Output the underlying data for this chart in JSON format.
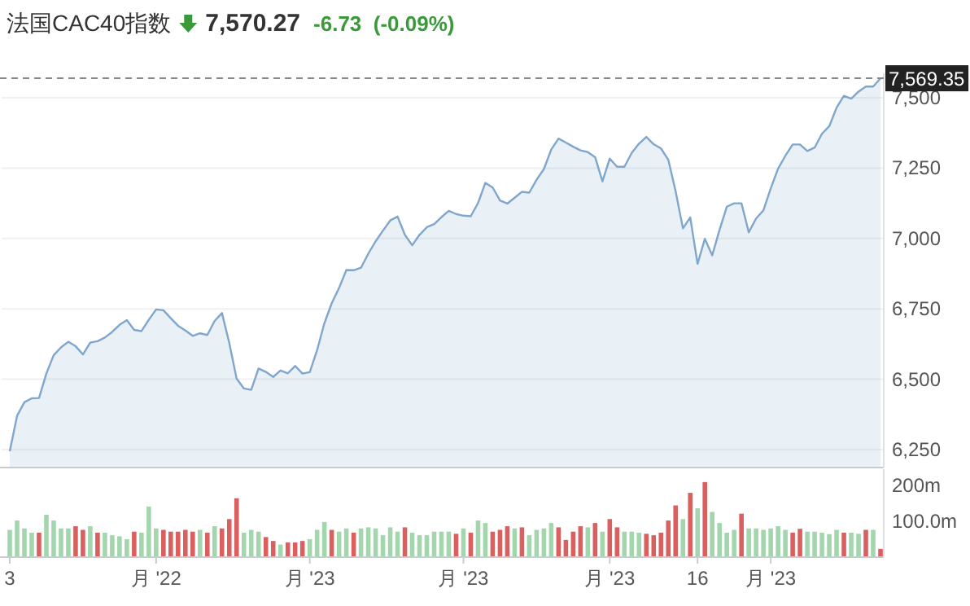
{
  "chart_data": [
    {
      "type": "area",
      "title": "法国CAC40指数",
      "annotations": [
        "7,570.27",
        "-6.73  (-0.09%)"
      ],
      "categories": [
        null,
        null,
        null,
        null,
        null,
        null,
        null,
        null,
        null,
        null,
        null,
        null,
        null,
        null,
        null,
        null,
        null,
        null,
        null,
        null,
        null,
        null,
        null,
        null,
        null,
        null,
        null,
        null,
        null,
        null,
        null,
        null,
        null,
        null,
        null,
        null,
        null,
        null,
        null,
        null,
        null,
        null,
        null,
        null,
        null,
        null,
        null,
        null,
        null,
        null,
        null,
        null,
        null,
        null,
        null,
        null,
        null,
        null,
        null,
        null,
        null,
        null,
        null,
        null,
        null,
        null,
        null,
        null,
        null,
        null,
        null,
        null,
        null,
        null,
        null,
        null,
        null,
        null,
        null,
        null,
        null,
        null,
        null,
        null,
        null,
        null,
        null,
        null,
        null,
        null,
        null,
        null,
        null,
        null,
        null,
        null,
        null,
        null,
        null,
        null,
        null,
        null,
        null,
        null,
        null,
        null,
        null,
        null,
        null,
        null,
        null,
        null,
        null,
        null,
        null,
        null,
        null,
        null,
        null,
        null
      ],
      "series": [
        {
          "color": "#7fa6cc",
          "values": [
            6244,
            6370,
            6418,
            6432,
            6433,
            6520,
            6585,
            6613,
            6633,
            6617,
            6588,
            6630,
            6635,
            6648,
            6668,
            6693,
            6710,
            6675,
            6671,
            6711,
            6748,
            6745,
            6717,
            6690,
            6673,
            6654,
            6663,
            6657,
            6707,
            6735,
            6629,
            6502,
            6467,
            6462,
            6538,
            6526,
            6508,
            6531,
            6521,
            6547,
            6520,
            6525,
            6603,
            6699,
            6770,
            6824,
            6888,
            6887,
            6896,
            6946,
            6990,
            7028,
            7064,
            7078,
            7013,
            6976,
            7013,
            7040,
            7051,
            7076,
            7098,
            7087,
            7081,
            7079,
            7126,
            7198,
            7181,
            7135,
            7124,
            7145,
            7166,
            7163,
            7209,
            7247,
            7316,
            7355,
            7341,
            7326,
            7313,
            7307,
            7289,
            7203,
            7284,
            7255,
            7255,
            7304,
            7337,
            7361,
            7335,
            7320,
            7280,
            7168,
            7036,
            7075,
            6910,
            6999,
            6940,
            7030,
            7113,
            7125,
            7125,
            7022,
            7071,
            7100,
            7178,
            7248,
            7294,
            7334,
            7334,
            7311,
            7323,
            7372,
            7399,
            7465,
            7507,
            7497,
            7522,
            7540,
            7540,
            7569
          ]
        }
      ],
      "ylim": [
        6186,
        7587
      ],
      "yticks": [
        {
          "value": 6250,
          "label": "6,250"
        },
        {
          "value": 6500,
          "label": "6,500"
        },
        {
          "value": 6750,
          "label": "6,750"
        },
        {
          "value": 7000,
          "label": "7,000"
        },
        {
          "value": 7250,
          "label": "7,250"
        },
        {
          "value": 7500,
          "label": "7,500"
        }
      ],
      "ref_lines": [
        {
          "axis": "y",
          "value": 7569.35,
          "label": "7,569.35",
          "line_style": "dashed",
          "color": "#888888"
        }
      ],
      "grid": "y",
      "tick_labels": "y"
    },
    {
      "type": "bar",
      "categories": [
        "3",
        null,
        null,
        null,
        null,
        null,
        null,
        null,
        null,
        null,
        null,
        null,
        null,
        null,
        null,
        null,
        null,
        null,
        null,
        null,
        "月 '22",
        null,
        null,
        null,
        null,
        null,
        null,
        null,
        null,
        null,
        null,
        null,
        null,
        null,
        null,
        null,
        null,
        null,
        null,
        null,
        null,
        "月 '23",
        null,
        null,
        null,
        null,
        null,
        null,
        null,
        null,
        null,
        null,
        null,
        null,
        null,
        null,
        null,
        null,
        null,
        null,
        null,
        null,
        "月 '23",
        null,
        null,
        null,
        null,
        null,
        null,
        null,
        null,
        null,
        null,
        null,
        null,
        null,
        null,
        null,
        null,
        null,
        null,
        null,
        "月 '23",
        null,
        null,
        null,
        null,
        null,
        null,
        null,
        null,
        null,
        null,
        null,
        "16",
        null,
        null,
        null,
        null,
        null,
        null,
        null,
        null,
        null,
        "月 '23",
        null,
        null,
        null,
        null,
        null,
        null,
        null,
        null,
        null,
        null,
        null,
        null,
        null,
        null,
        null
      ],
      "values": [
        76,
        102,
        80,
        68,
        68,
        118,
        102,
        80,
        80,
        86,
        76,
        86,
        68,
        68,
        61,
        58,
        50,
        71,
        68,
        141,
        80,
        76,
        71,
        71,
        76,
        71,
        76,
        68,
        86,
        80,
        106,
        164,
        68,
        76,
        71,
        56,
        45,
        35,
        41,
        41,
        45,
        50,
        76,
        98,
        76,
        71,
        80,
        68,
        80,
        83,
        80,
        61,
        83,
        71,
        83,
        68,
        61,
        61,
        71,
        71,
        71,
        65,
        80,
        68,
        102,
        95,
        71,
        76,
        86,
        80,
        83,
        61,
        76,
        80,
        95,
        83,
        48,
        71,
        86,
        83,
        95,
        71,
        106,
        83,
        71,
        71,
        68,
        65,
        61,
        68,
        102,
        144,
        106,
        179,
        136,
        209,
        126,
        95,
        68,
        76,
        121,
        80,
        80,
        76,
        80,
        86,
        76,
        68,
        79,
        71,
        71,
        68,
        64,
        76,
        68,
        68,
        65,
        76,
        76,
        23
      ],
      "colors": [
        "#a3d6ad",
        "#a3d6ad",
        "#a3d6ad",
        "#a3d6ad",
        "#d9605f",
        "#a3d6ad",
        "#a3d6ad",
        "#a3d6ad",
        "#a3d6ad",
        "#d9605f",
        "#d9605f",
        "#a3d6ad",
        "#d9605f",
        "#a3d6ad",
        "#a3d6ad",
        "#a3d6ad",
        "#a3d6ad",
        "#d9605f",
        "#a3d6ad",
        "#a3d6ad",
        "#a3d6ad",
        "#d9605f",
        "#d9605f",
        "#d9605f",
        "#d9605f",
        "#d9605f",
        "#a3d6ad",
        "#d9605f",
        "#a3d6ad",
        "#d9605f",
        "#d9605f",
        "#d9605f",
        "#a3d6ad",
        "#a3d6ad",
        "#a3d6ad",
        "#d9605f",
        "#d9605f",
        "#a3d6ad",
        "#d9605f",
        "#d9605f",
        "#d9605f",
        "#a3d6ad",
        "#a3d6ad",
        "#a3d6ad",
        "#d9605f",
        "#a3d6ad",
        "#a3d6ad",
        "#d9605f",
        "#a3d6ad",
        "#a3d6ad",
        "#a3d6ad",
        "#a3d6ad",
        "#a3d6ad",
        "#a3d6ad",
        "#d9605f",
        "#a3d6ad",
        "#a3d6ad",
        "#a3d6ad",
        "#a3d6ad",
        "#a3d6ad",
        "#a3d6ad",
        "#d9605f",
        "#a3d6ad",
        "#d9605f",
        "#a3d6ad",
        "#a3d6ad",
        "#d9605f",
        "#d9605f",
        "#d9605f",
        "#a3d6ad",
        "#d9605f",
        "#a3d6ad",
        "#a3d6ad",
        "#a3d6ad",
        "#a3d6ad",
        "#d9605f",
        "#d9605f",
        "#d9605f",
        "#d9605f",
        "#a3d6ad",
        "#d9605f",
        "#a3d6ad",
        "#d9605f",
        "#d9605f",
        "#a3d6ad",
        "#a3d6ad",
        "#a3d6ad",
        "#d9605f",
        "#d9605f",
        "#d9605f",
        "#d9605f",
        "#d9605f",
        "#a3d6ad",
        "#d9605f",
        "#a3d6ad",
        "#d9605f",
        "#a3d6ad",
        "#a3d6ad",
        "#a3d6ad",
        "#a3d6ad",
        "#d9605f",
        "#a3d6ad",
        "#a3d6ad",
        "#a3d6ad",
        "#a3d6ad",
        "#a3d6ad",
        "#a3d6ad",
        "#d9605f",
        "#d9605f",
        "#a3d6ad",
        "#a3d6ad",
        "#a3d6ad",
        "#a3d6ad",
        "#a3d6ad",
        "#d9605f",
        "#a3d6ad",
        "#a3d6ad",
        "#d9605f",
        "#a3d6ad",
        "#d9605f"
      ],
      "ylim": [
        0,
        245
      ],
      "yticks": [
        {
          "value": 100,
          "label": "100.0m"
        },
        {
          "value": 200,
          "label": "200m"
        }
      ]
    }
  ]
}
